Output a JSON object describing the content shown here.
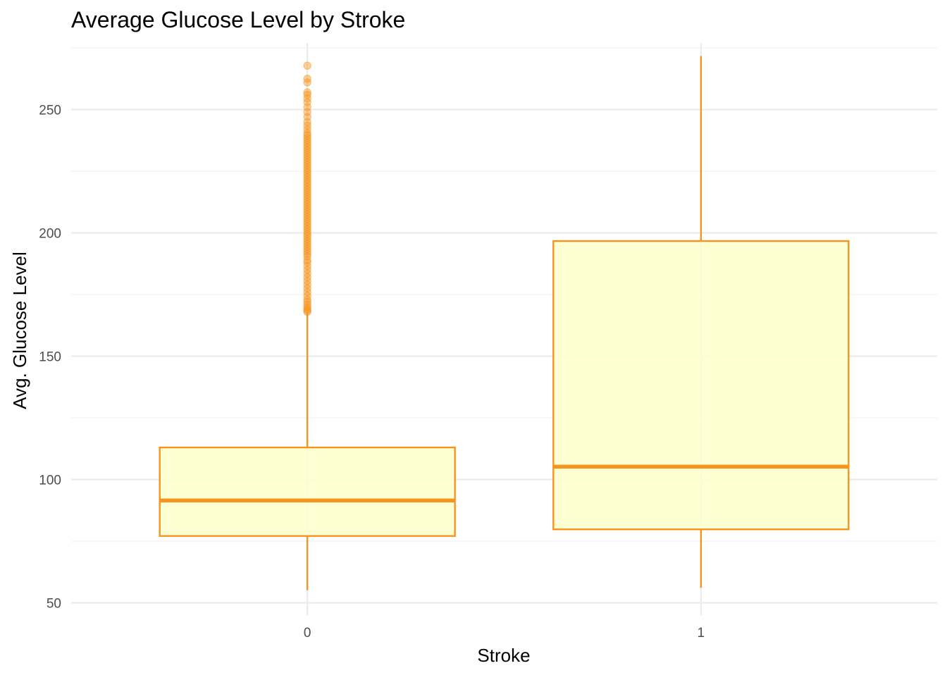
{
  "chart_data": {
    "type": "boxplot",
    "title": "Average Glucose Level by Stroke",
    "xlabel": "Stroke",
    "ylabel": "Avg. Glucose Level",
    "categories": [
      "0",
      "1"
    ],
    "ylim": [
      45,
      277
    ],
    "y_ticks": [
      50,
      100,
      150,
      200,
      250
    ],
    "grid": true,
    "colors": {
      "box_fill": "#ffffcc",
      "box_line": "#f7941d",
      "outlier": "#f7941d",
      "grid": "#ebebeb"
    },
    "boxes": [
      {
        "category": "0",
        "whisker_low": 55.1,
        "q1": 77.1,
        "median": 91.5,
        "q3": 113.0,
        "whisker_high": 167.5,
        "outliers": [
          168,
          168.5,
          169.2,
          170,
          171,
          172,
          173,
          174.5,
          176,
          177.5,
          179,
          180.5,
          182,
          183.5,
          185,
          186.5,
          188,
          189,
          190.5,
          191.5,
          192.5,
          193.5,
          194.5,
          195.5,
          196.5,
          197.5,
          198.5,
          199.5,
          200.5,
          201.5,
          202.5,
          203.5,
          204.5,
          205.5,
          206.5,
          207.5,
          208.5,
          209.5,
          210.5,
          211.5,
          212.5,
          213.5,
          214.5,
          215.5,
          216.5,
          217.5,
          218.5,
          219.5,
          220.5,
          221.5,
          222.5,
          223.5,
          224.5,
          225.5,
          226.5,
          227.5,
          228.5,
          229.5,
          230.5,
          231.5,
          232.5,
          233.5,
          234.5,
          235.5,
          236.5,
          237.5,
          238.5,
          239.5,
          240.5,
          242,
          243.5,
          245,
          247,
          249,
          251,
          253,
          254.5,
          256,
          257,
          261,
          262.5,
          267.8
        ]
      },
      {
        "category": "1",
        "whisker_low": 56.1,
        "q1": 79.8,
        "median": 105.2,
        "q3": 196.7,
        "whisker_high": 271.7,
        "outliers": []
      }
    ]
  }
}
